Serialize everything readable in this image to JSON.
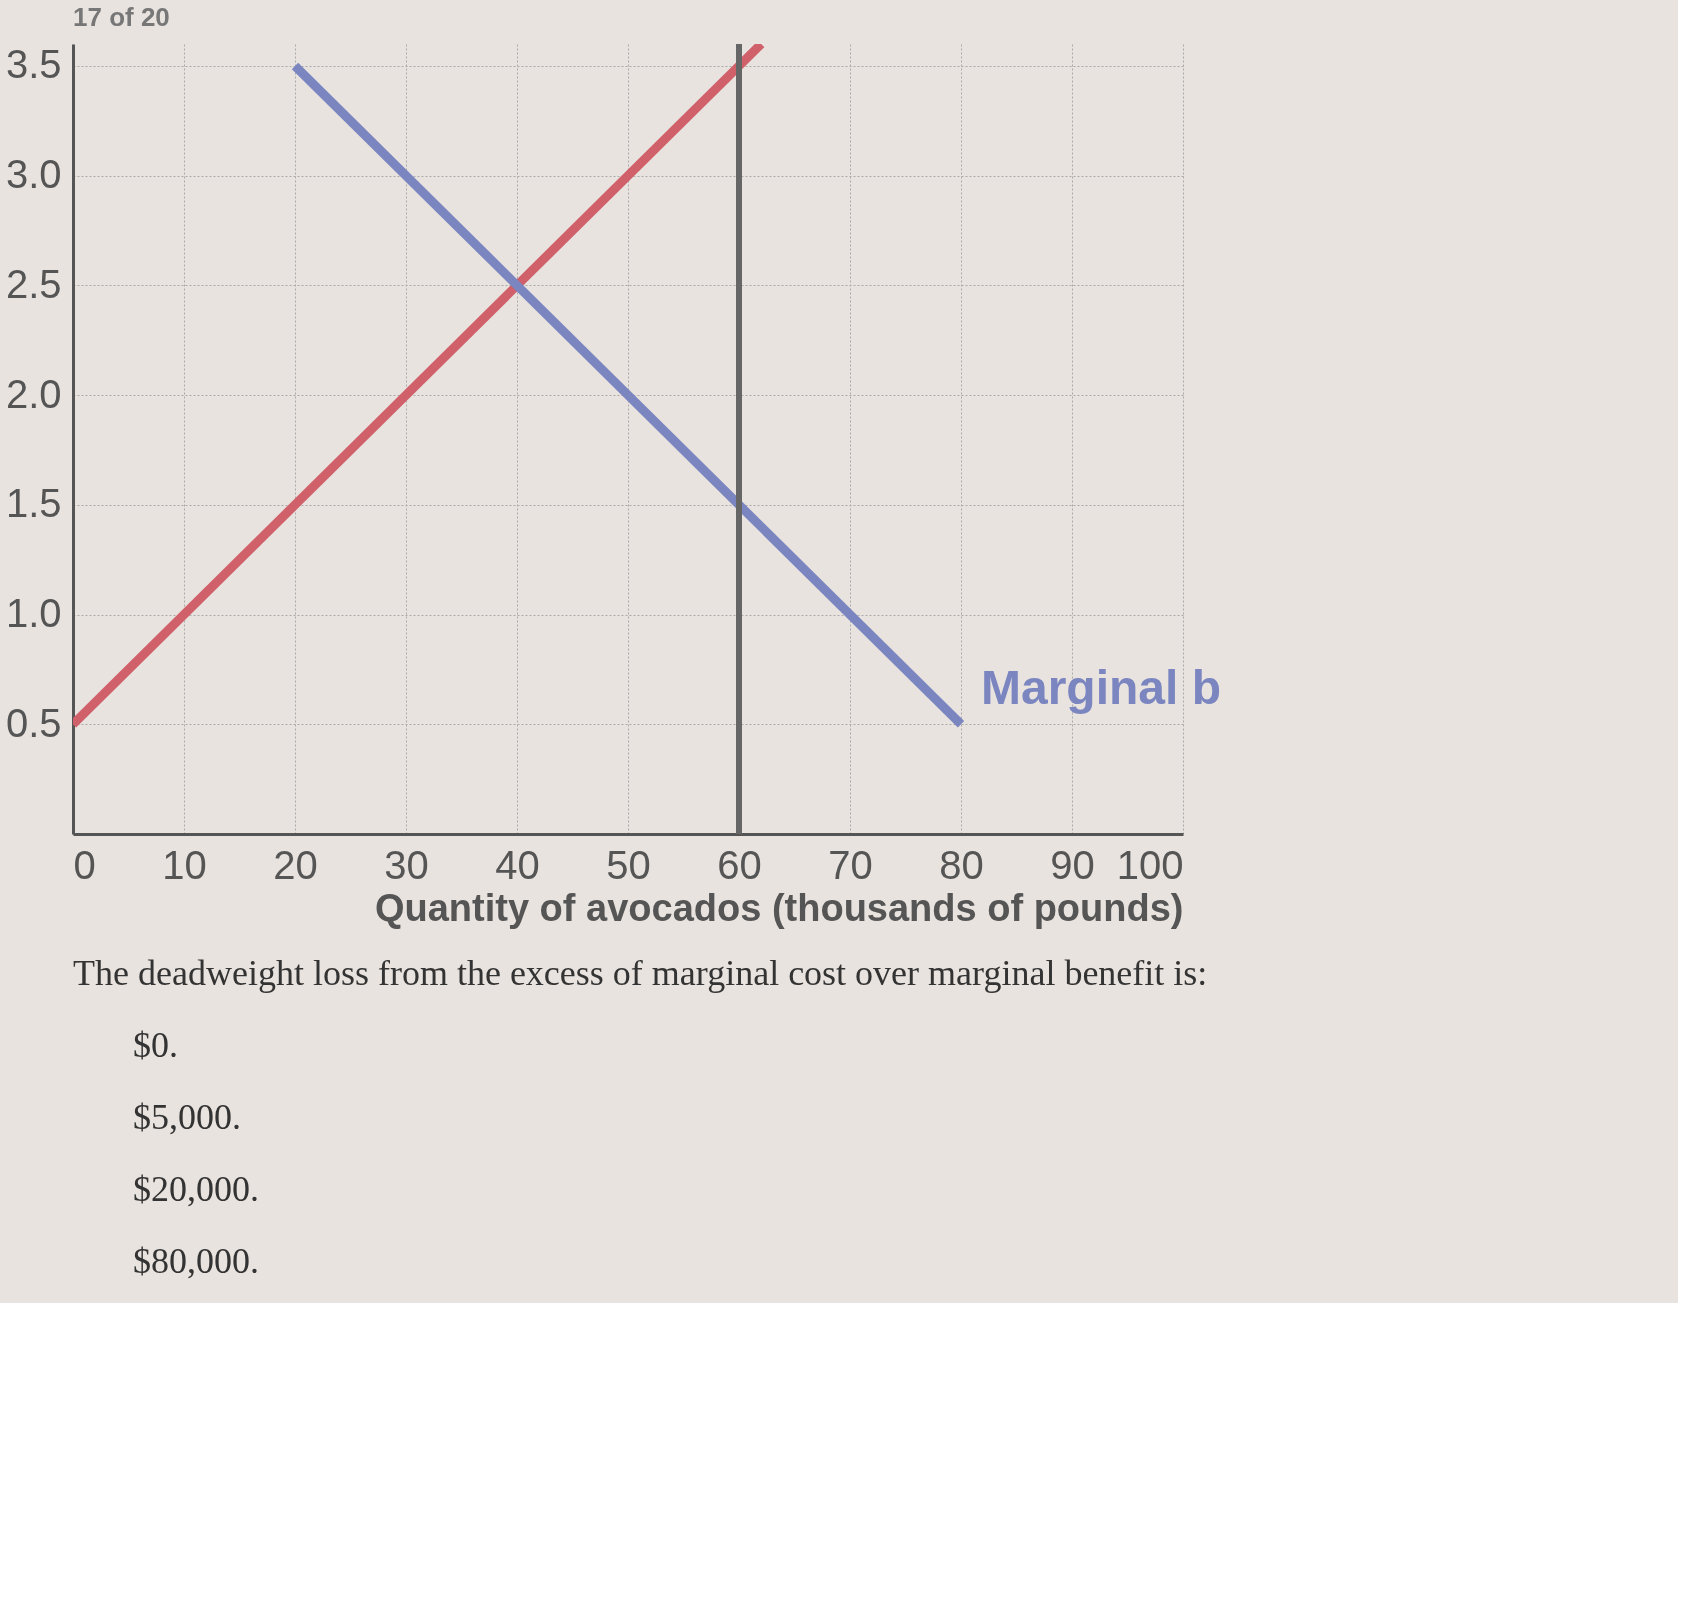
{
  "chart_data": {
    "type": "line",
    "xlabel": "Quantity of avocados (thousands of pounds)",
    "xlim": [
      0,
      100
    ],
    "xticks": [
      0,
      10,
      20,
      30,
      40,
      50,
      60,
      70,
      80,
      90,
      100
    ],
    "ylim": [
      0,
      3.6
    ],
    "yticks": [
      {
        "value": 0.5,
        "label": "0.5"
      },
      {
        "value": 1,
        "label": "1.0"
      },
      {
        "value": 1.5,
        "label": "1.5"
      },
      {
        "value": 2,
        "label": "2.0"
      },
      {
        "value": 2.5,
        "label": "2.5"
      },
      {
        "value": 3,
        "label": "3.0"
      },
      {
        "value": 3.5,
        "label": "3.5"
      }
    ],
    "grid": true,
    "legend": false,
    "marker": "none",
    "line_style": "solid",
    "series": [
      {
        "color": "#d0606a",
        "x": [
          0,
          62
        ],
        "values": [
          0.5,
          3.6
        ]
      },
      {
        "name": "Marginal b",
        "color": "#7b86c0",
        "x": [
          20,
          80
        ],
        "values": [
          3.5,
          0.5
        ]
      }
    ],
    "ref_lines": [
      {
        "axis": "x",
        "value": 60,
        "color": "#666666"
      }
    ],
    "annotations": [
      "17 of 20",
      "The deadweight loss from the excess of marginal cost over marginal benefit is:",
      "$0.",
      "$5,000.",
      "$20,000.",
      "$80,000."
    ]
  }
}
